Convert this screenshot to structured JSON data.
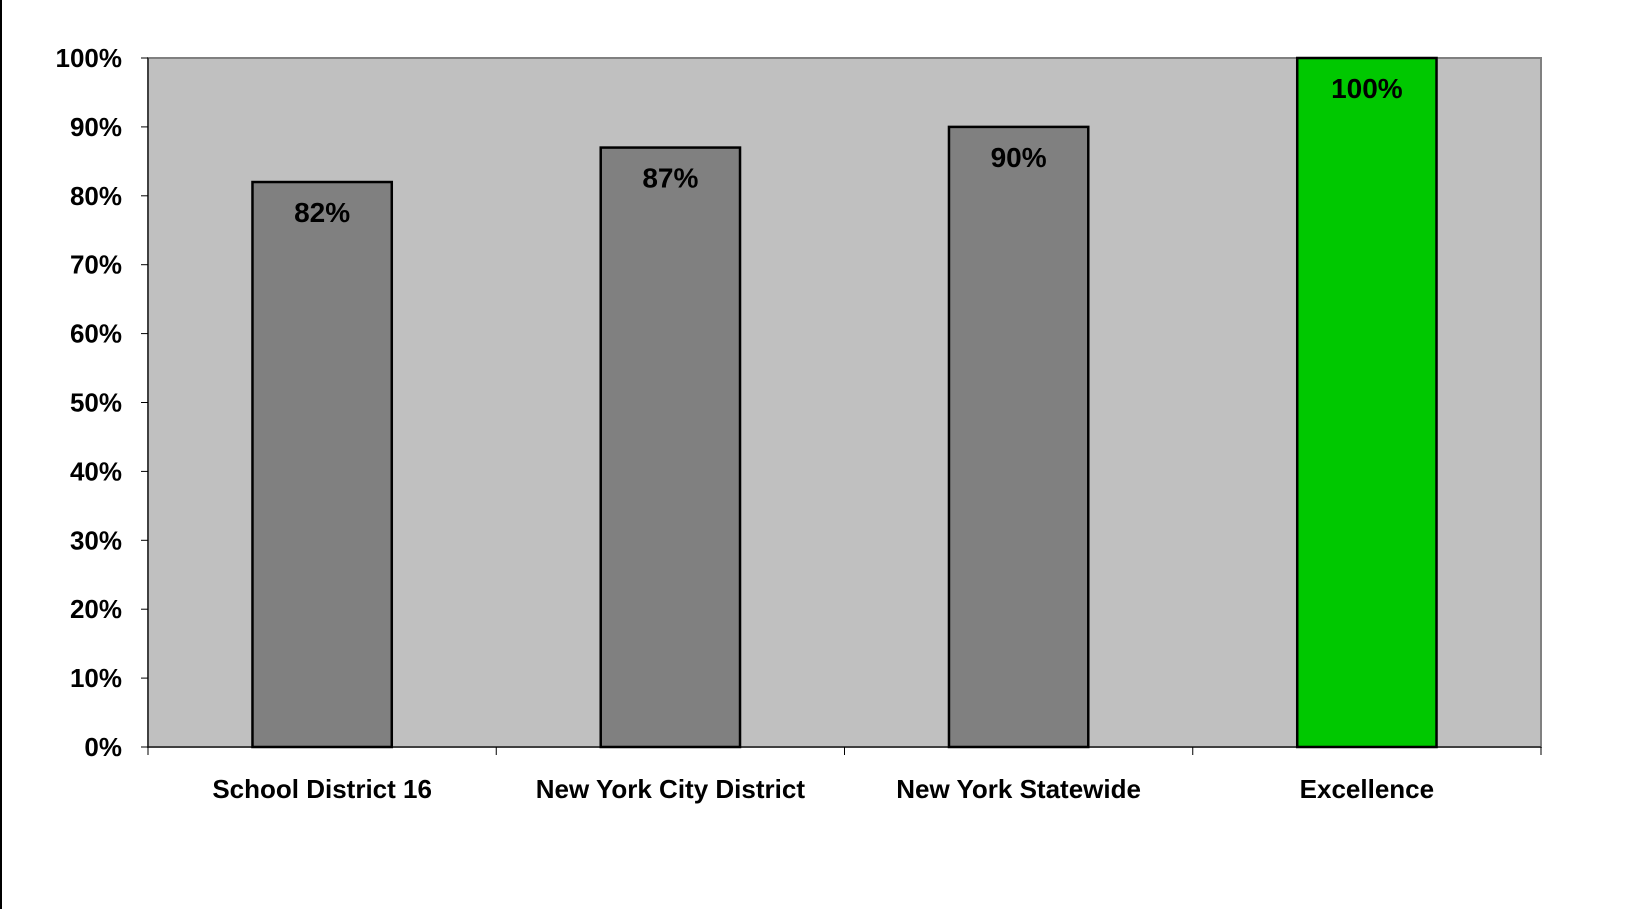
{
  "chart_data": {
    "type": "bar",
    "categories": [
      "School District 16",
      "New York City District",
      "New York Statewide",
      "Excellence"
    ],
    "values": [
      82,
      87,
      90,
      100
    ],
    "data_labels": [
      "82%",
      "87%",
      "90%",
      "100%"
    ],
    "bar_colors": [
      "#808080",
      "#808080",
      "#808080",
      "#00C800"
    ],
    "title": "",
    "xlabel": "",
    "ylabel": "",
    "ylim": [
      0,
      100
    ],
    "yticks": [
      0,
      10,
      20,
      30,
      40,
      50,
      60,
      70,
      80,
      90,
      100
    ],
    "ytick_labels": [
      "0%",
      "10%",
      "20%",
      "30%",
      "40%",
      "50%",
      "60%",
      "70%",
      "80%",
      "90%",
      "100%"
    ],
    "plot_background": "#C0C0C0",
    "grid": false,
    "legend": "none"
  }
}
